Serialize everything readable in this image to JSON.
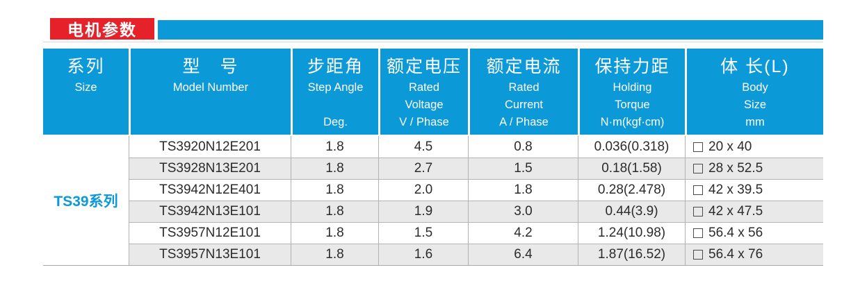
{
  "title": {
    "badge": "电机参数"
  },
  "colors": {
    "accent_blue": "#0c99d8",
    "badge_red": "#e62129",
    "stripe_gray": "#e9e9e9"
  },
  "table": {
    "series_label": "TS39系列",
    "header": [
      {
        "zh": "系列",
        "en1": "Size",
        "en2": "",
        "en3": ""
      },
      {
        "zh": "型　号",
        "en1": "Model Number",
        "en2": "",
        "en3": ""
      },
      {
        "zh": "步距角",
        "en1": "Step Angle",
        "en2": "",
        "en3": "Deg."
      },
      {
        "zh": "额定电压",
        "en1": "Rated",
        "en2": "Voltage",
        "en3": "V / Phase"
      },
      {
        "zh": "额定电流",
        "en1": "Rated",
        "en2": "Current",
        "en3": "A / Phase"
      },
      {
        "zh": "保持力距",
        "en1": "Holding",
        "en2": "Torque",
        "en3": "N·m(kgf·cm)"
      },
      {
        "zh": "体 长(L)",
        "en1": "Body",
        "en2": "Size",
        "en3": "mm"
      }
    ],
    "rows": [
      {
        "model": "TS3920N12E201",
        "step": "1.8",
        "voltage": "4.5",
        "current": "0.8",
        "torque": "0.036(0.318)",
        "body": "20 x 40"
      },
      {
        "model": "TS3928N13E201",
        "step": "1.8",
        "voltage": "2.7",
        "current": "1.5",
        "torque": "0.18(1.58)",
        "body": "28 x 52.5"
      },
      {
        "model": "TS3942N12E401",
        "step": "1.8",
        "voltage": "2.0",
        "current": "1.8",
        "torque": "0.28(2.478)",
        "body": "42 x 39.5"
      },
      {
        "model": "TS3942N13E101",
        "step": "1.8",
        "voltage": "1.9",
        "current": "3.0",
        "torque": "0.44(3.9)",
        "body": "42 x 47.5"
      },
      {
        "model": "TS3957N12E101",
        "step": "1.8",
        "voltage": "1.5",
        "current": "4.2",
        "torque": "1.24(10.98)",
        "body": "56.4 x 56"
      },
      {
        "model": "TS3957N13E101",
        "step": "1.8",
        "voltage": "1.6",
        "current": "6.4",
        "torque": "1.87(16.52)",
        "body": "56.4 x 76"
      }
    ]
  }
}
